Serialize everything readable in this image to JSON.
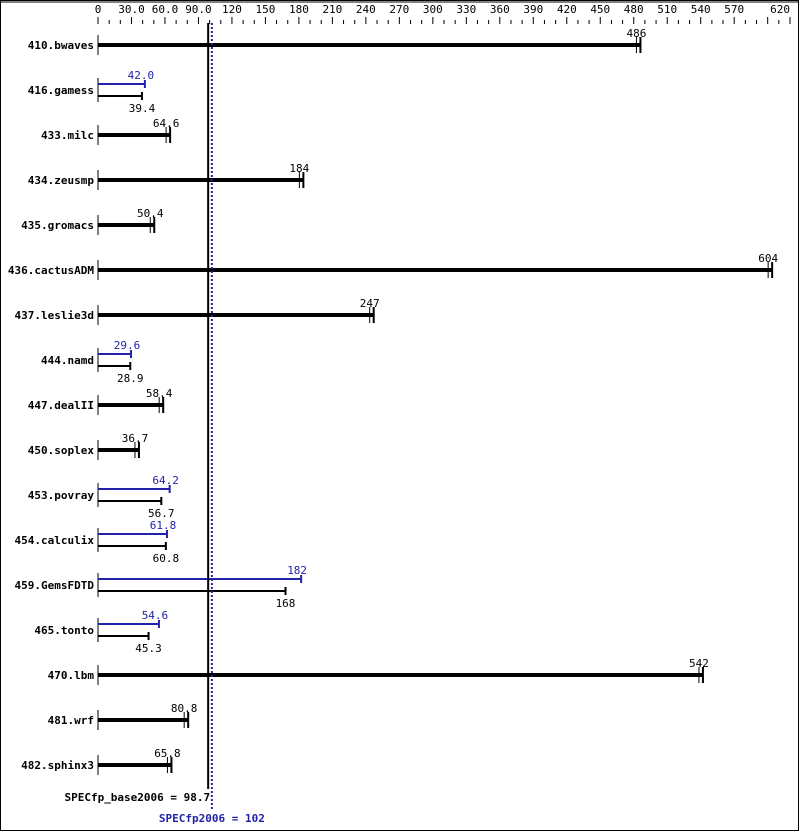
{
  "chart_data": {
    "type": "bar",
    "orientation": "horizontal",
    "xlim": [
      0,
      620
    ],
    "ticks": [
      "0",
      "30.0",
      "60.0",
      "90.0",
      "120",
      "150",
      "180",
      "210",
      "240",
      "270",
      "300",
      "330",
      "360",
      "390",
      "420",
      "450",
      "480",
      "510",
      "540",
      "570",
      "620"
    ],
    "tick_values": [
      0,
      30,
      60,
      90,
      120,
      150,
      180,
      210,
      240,
      270,
      300,
      330,
      360,
      390,
      420,
      450,
      480,
      510,
      540,
      570,
      620
    ],
    "categories": [
      "410.bwaves",
      "416.gamess",
      "433.milc",
      "434.zeusmp",
      "435.gromacs",
      "436.cactusADM",
      "437.leslie3d",
      "444.namd",
      "447.dealII",
      "450.soplex",
      "453.povray",
      "454.calculix",
      "459.GemsFDTD",
      "465.tonto",
      "470.lbm",
      "481.wrf",
      "482.sphinx3"
    ],
    "series": [
      {
        "name": "SPECfp_base2006",
        "values": [
          486,
          39.4,
          64.6,
          184,
          50.4,
          604,
          247,
          28.9,
          58.4,
          36.7,
          56.7,
          60.8,
          168,
          45.3,
          542,
          80.8,
          65.8
        ],
        "labels": [
          "486",
          "39.4",
          "64.6",
          "184",
          "50.4",
          "604",
          "247",
          "28.9",
          "58.4",
          "36.7",
          "56.7",
          "60.8",
          "168",
          "45.3",
          "542",
          "80.8",
          "65.8"
        ]
      },
      {
        "name": "SPECfp2006",
        "values": [
          null,
          42.0,
          null,
          null,
          null,
          null,
          null,
          29.6,
          null,
          null,
          64.2,
          61.8,
          182,
          54.6,
          null,
          null,
          null
        ],
        "labels": [
          null,
          "42.0",
          null,
          null,
          null,
          null,
          null,
          "29.6",
          null,
          null,
          "64.2",
          "61.8",
          "182",
          "54.6",
          null,
          null,
          null
        ]
      }
    ],
    "reference_lines": [
      {
        "label": "SPECfp_base2006 = 98.7",
        "value": 98.7,
        "color": "#000000",
        "style": "solid"
      },
      {
        "label": "SPECfp2006 = 102",
        "value": 102,
        "color": "#2222aa",
        "style": "dotted"
      }
    ],
    "colors": {
      "base": "#000000",
      "peak": "#2222aa"
    }
  }
}
